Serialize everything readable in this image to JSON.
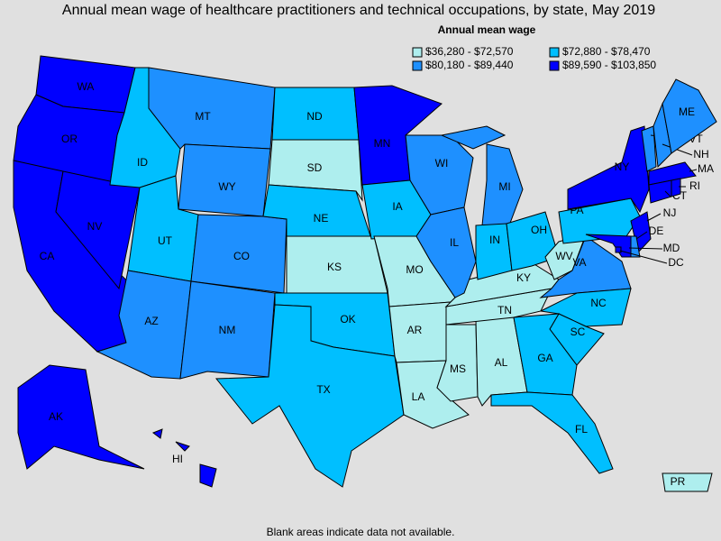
{
  "header": {
    "title": "Annual mean wage of healthcare practitioners and technical occupations, by state, May 2019"
  },
  "legend": {
    "title": "Annual mean wage",
    "items": [
      {
        "label": "$36,280 - $72,570",
        "color": "#aeeeee"
      },
      {
        "label": "$72,880 - $78,470",
        "color": "#00bfff"
      },
      {
        "label": "$80,180 - $89,440",
        "color": "#1e90ff"
      },
      {
        "label": "$89,590 - $103,850",
        "color": "#0000ff"
      }
    ]
  },
  "states": [
    {
      "label": "WA",
      "class": 3
    },
    {
      "label": "OR",
      "class": 3
    },
    {
      "label": "CA",
      "class": 3
    },
    {
      "label": "NV",
      "class": 3
    },
    {
      "label": "ID",
      "class": 1
    },
    {
      "label": "MT",
      "class": 2
    },
    {
      "label": "WY",
      "class": 2
    },
    {
      "label": "UT",
      "class": 1
    },
    {
      "label": "CO",
      "class": 2
    },
    {
      "label": "AZ",
      "class": 2
    },
    {
      "label": "NM",
      "class": 2
    },
    {
      "label": "ND",
      "class": 1
    },
    {
      "label": "SD",
      "class": 0
    },
    {
      "label": "NE",
      "class": 1
    },
    {
      "label": "KS",
      "class": 0
    },
    {
      "label": "OK",
      "class": 1
    },
    {
      "label": "TX",
      "class": 1
    },
    {
      "label": "MN",
      "class": 3
    },
    {
      "label": "IA",
      "class": 1
    },
    {
      "label": "MO",
      "class": 0
    },
    {
      "label": "AR",
      "class": 0
    },
    {
      "label": "LA",
      "class": 0
    },
    {
      "label": "MS",
      "class": 0
    },
    {
      "label": "AL",
      "class": 0
    },
    {
      "label": "TN",
      "class": 0
    },
    {
      "label": "KY",
      "class": 0
    },
    {
      "label": "WI",
      "class": 2
    },
    {
      "label": "IL",
      "class": 2
    },
    {
      "label": "MI",
      "class": 2
    },
    {
      "label": "IN",
      "class": 1
    },
    {
      "label": "OH",
      "class": 1
    },
    {
      "label": "WV",
      "class": 0
    },
    {
      "label": "VA",
      "class": 2
    },
    {
      "label": "NC",
      "class": 1
    },
    {
      "label": "SC",
      "class": 1
    },
    {
      "label": "GA",
      "class": 1
    },
    {
      "label": "FL",
      "class": 1
    },
    {
      "label": "PA",
      "class": 1
    },
    {
      "label": "NY",
      "class": 3
    },
    {
      "label": "NJ",
      "class": 3
    },
    {
      "label": "DE",
      "class": 2
    },
    {
      "label": "MD",
      "class": 3
    },
    {
      "label": "DC",
      "class": 3
    },
    {
      "label": "VT",
      "class": 2
    },
    {
      "label": "NH",
      "class": 2
    },
    {
      "label": "ME",
      "class": 2
    },
    {
      "label": "MA",
      "class": 3
    },
    {
      "label": "CT",
      "class": 3
    },
    {
      "label": "RI",
      "class": 3
    },
    {
      "label": "AK",
      "class": 3
    },
    {
      "label": "HI",
      "class": 3
    },
    {
      "label": "PR",
      "class": 0
    }
  ],
  "footnote": "Blank areas indicate data not available."
}
